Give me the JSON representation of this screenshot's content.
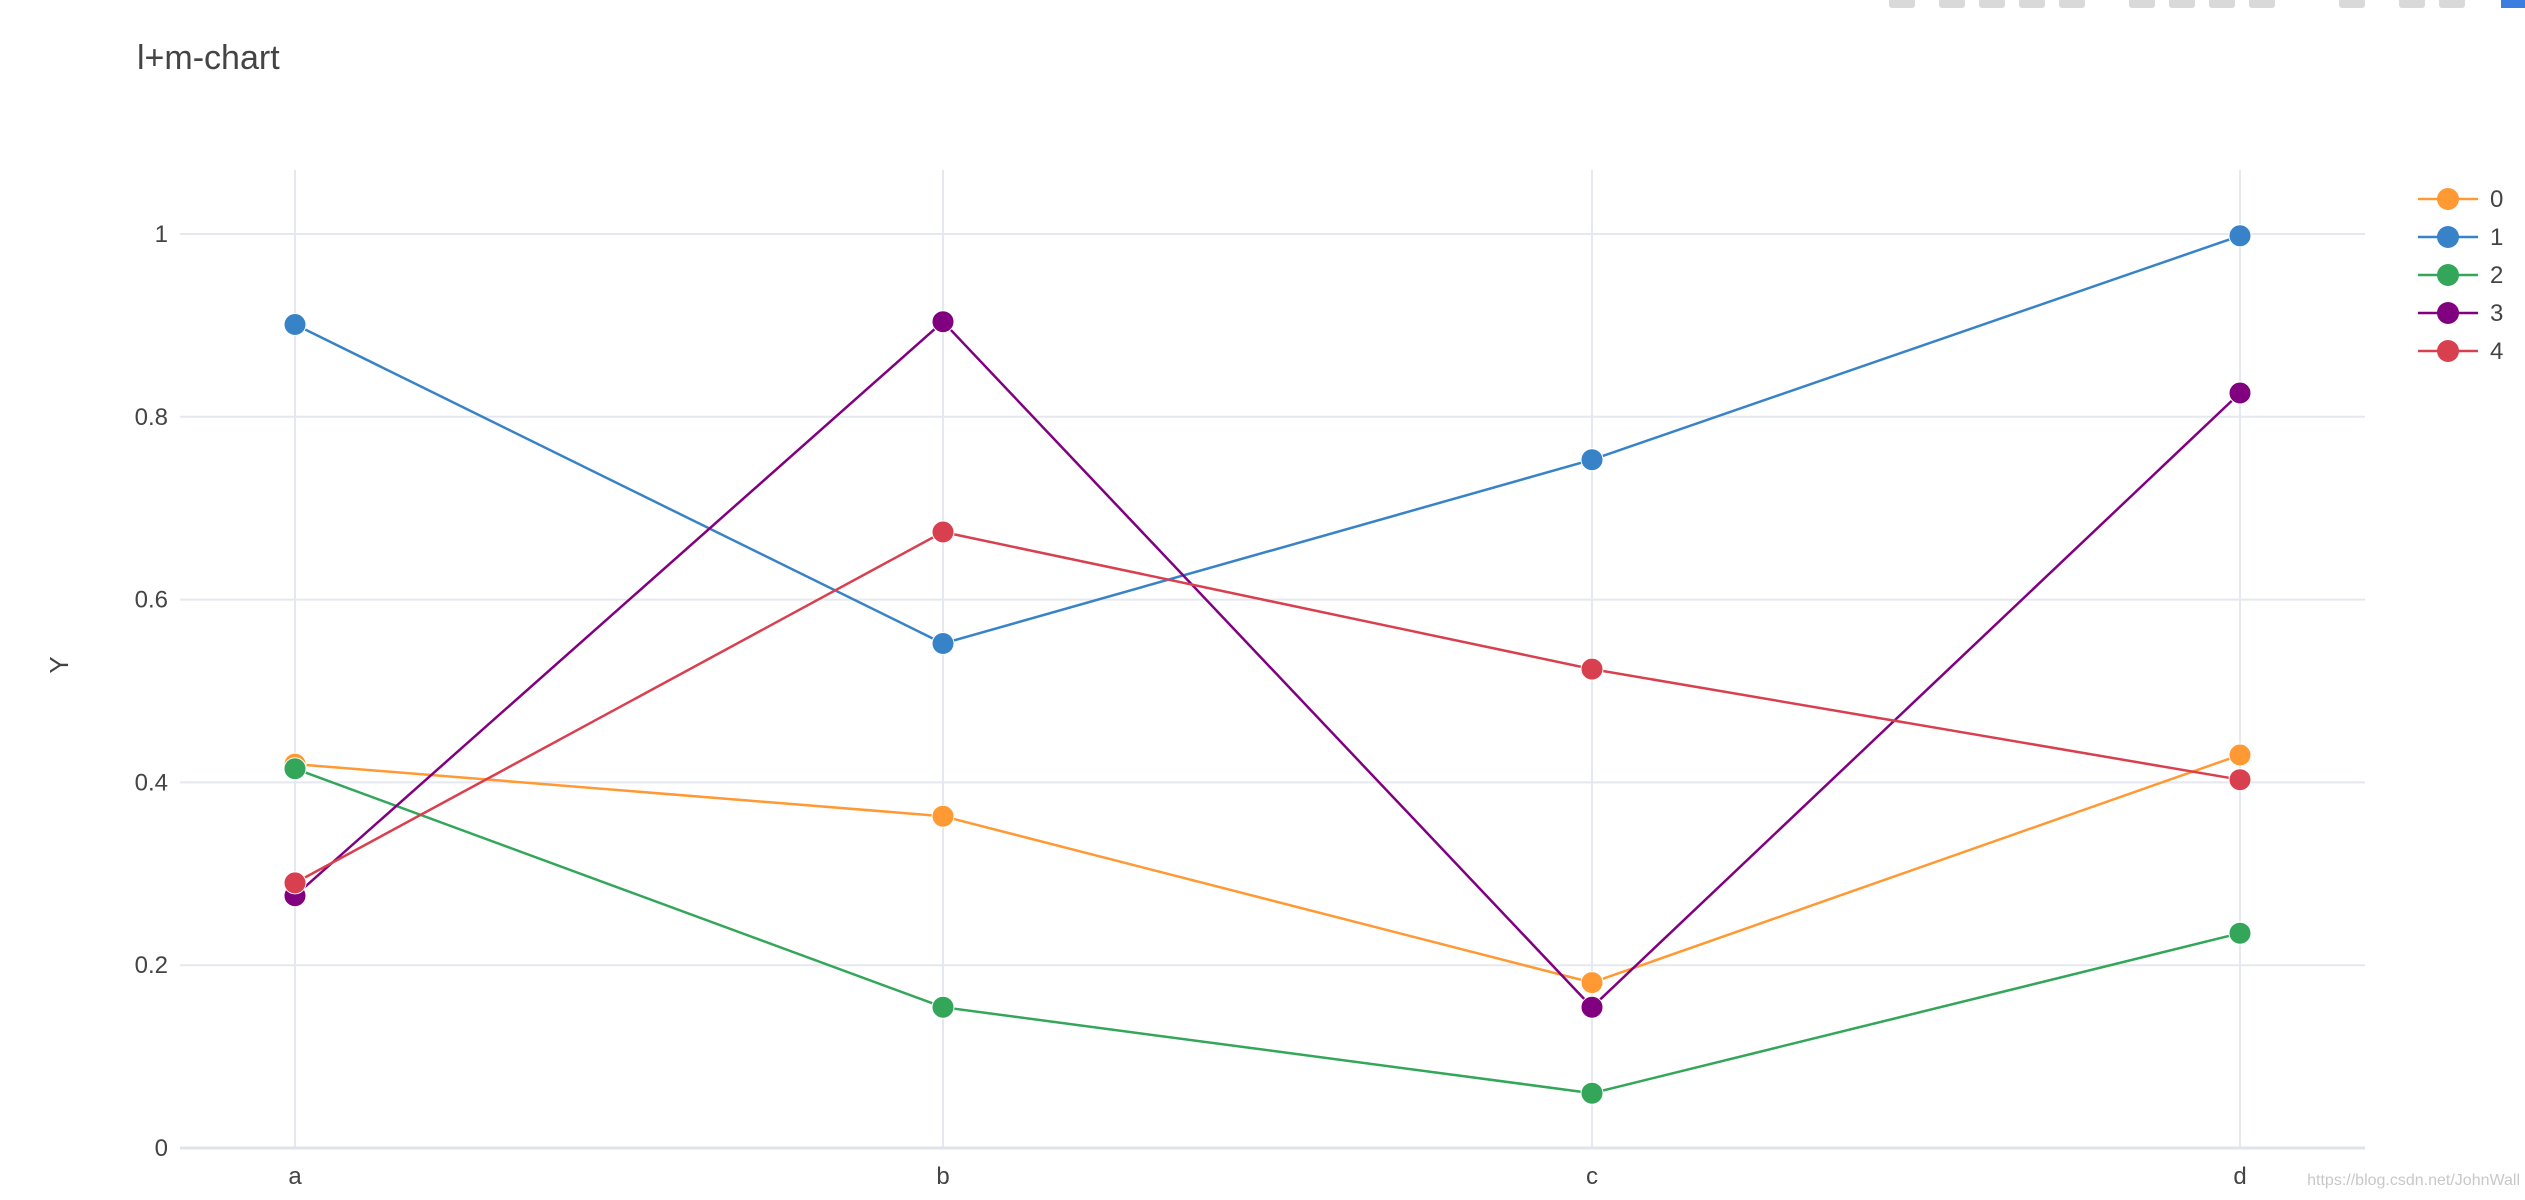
{
  "chart_data": {
    "type": "line",
    "title": "l+m-chart",
    "xlabel": "",
    "ylabel": "Y",
    "categories": [
      "a",
      "b",
      "c",
      "d"
    ],
    "ylim": [
      0,
      1.07
    ],
    "yticks": [
      0,
      0.2,
      0.4,
      0.6,
      0.8,
      1
    ],
    "ytick_labels": [
      "0",
      "0.2",
      "0.4",
      "0.6",
      "0.8",
      "1"
    ],
    "grid": true,
    "legend_position": "top-right",
    "markers": true,
    "series": [
      {
        "name": "0",
        "color": "#ff9933",
        "values": [
          0.42,
          0.363,
          0.181,
          0.43
        ]
      },
      {
        "name": "1",
        "color": "#3883c8",
        "values": [
          0.901,
          0.552,
          0.753,
          0.998
        ]
      },
      {
        "name": "2",
        "color": "#33a65a",
        "values": [
          0.415,
          0.154,
          0.06,
          0.235
        ]
      },
      {
        "name": "3",
        "color": "#800080",
        "values": [
          0.276,
          0.904,
          0.154,
          0.826
        ]
      },
      {
        "name": "4",
        "color": "#d9404f",
        "values": [
          0.29,
          0.674,
          0.524,
          0.403
        ]
      }
    ]
  },
  "watermark": "https://blog.csdn.net/JohnWall"
}
